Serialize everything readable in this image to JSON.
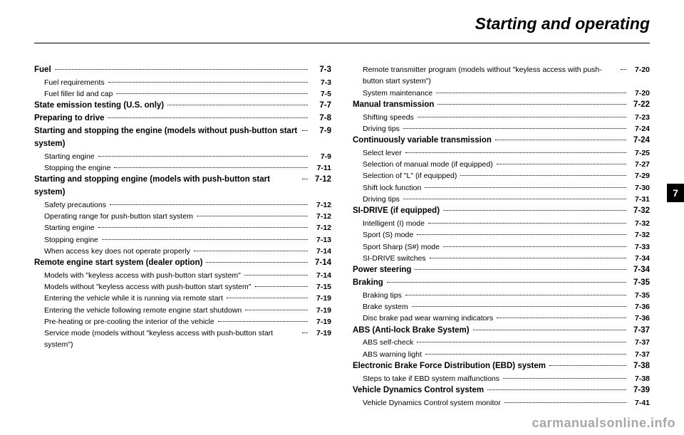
{
  "title": "Starting and operating",
  "section_tab": "7",
  "watermark": "carmanualsonline.info",
  "columns": [
    [
      {
        "lvl": 1,
        "label": "Fuel",
        "page": "7-3"
      },
      {
        "lvl": 2,
        "label": "Fuel requirements",
        "page": "7-3"
      },
      {
        "lvl": 2,
        "label": "Fuel filler lid and cap",
        "page": "7-5"
      },
      {
        "lvl": 1,
        "label": "State emission testing (U.S. only)",
        "page": "7-7"
      },
      {
        "lvl": 1,
        "label": "Preparing to drive",
        "page": "7-8"
      },
      {
        "lvl": 1,
        "label": "Starting and stopping the engine (models without push-button start system)",
        "page": "7-9"
      },
      {
        "lvl": 2,
        "label": "Starting engine",
        "page": "7-9"
      },
      {
        "lvl": 2,
        "label": "Stopping the engine",
        "page": "7-11"
      },
      {
        "lvl": 1,
        "label": "Starting and stopping engine (models with push-button start system)",
        "page": "7-12"
      },
      {
        "lvl": 2,
        "label": "Safety precautions",
        "page": "7-12"
      },
      {
        "lvl": 2,
        "label": "Operating range for push-button start system",
        "page": "7-12"
      },
      {
        "lvl": 2,
        "label": "Starting engine",
        "page": "7-12"
      },
      {
        "lvl": 2,
        "label": "Stopping engine",
        "page": "7-13"
      },
      {
        "lvl": 2,
        "label": "When access key does not operate properly",
        "page": "7-14"
      },
      {
        "lvl": 1,
        "label": "Remote engine start system (dealer option)",
        "page": "7-14"
      },
      {
        "lvl": 2,
        "label": "Models with \"keyless access with push-button start system\"",
        "page": "7-14"
      },
      {
        "lvl": 2,
        "label": "Models without \"keyless access with push-button start system\"",
        "page": "7-15"
      },
      {
        "lvl": 2,
        "label": "Entering the vehicle while it is running via remote start",
        "page": "7-19"
      },
      {
        "lvl": 2,
        "label": "Entering the vehicle following remote engine start shutdown",
        "page": "7-19"
      },
      {
        "lvl": 2,
        "label": "Pre-heating or pre-cooling the interior of the vehicle",
        "page": "7-19"
      },
      {
        "lvl": 2,
        "label": "Service mode (models without \"keyless access with push-button start system\")",
        "page": "7-19"
      }
    ],
    [
      {
        "lvl": 2,
        "label": "Remote transmitter program (models without \"keyless access with push-button start system\")",
        "page": "7-20"
      },
      {
        "lvl": 2,
        "label": "System maintenance",
        "page": "7-20"
      },
      {
        "lvl": 1,
        "label": "Manual transmission",
        "page": "7-22"
      },
      {
        "lvl": 2,
        "label": "Shifting speeds",
        "page": "7-23"
      },
      {
        "lvl": 2,
        "label": "Driving tips",
        "page": "7-24"
      },
      {
        "lvl": 1,
        "label": "Continuously variable transmission",
        "page": "7-24"
      },
      {
        "lvl": 2,
        "label": "Select lever",
        "page": "7-25"
      },
      {
        "lvl": 2,
        "label": "Selection of manual mode (if equipped)",
        "page": "7-27"
      },
      {
        "lvl": 2,
        "label": "Selection of \"L\" (if equipped)",
        "page": "7-29"
      },
      {
        "lvl": 2,
        "label": "Shift lock function",
        "page": "7-30"
      },
      {
        "lvl": 2,
        "label": "Driving tips",
        "page": "7-31"
      },
      {
        "lvl": 1,
        "label": "SI-DRIVE (if equipped)",
        "page": "7-32"
      },
      {
        "lvl": 2,
        "label": "Intelligent (I) mode",
        "page": "7-32"
      },
      {
        "lvl": 2,
        "label": "Sport (S) mode",
        "page": "7-32"
      },
      {
        "lvl": 2,
        "label": "Sport Sharp (S#) mode",
        "page": "7-33"
      },
      {
        "lvl": 2,
        "label": "SI-DRIVE switches",
        "page": "7-34"
      },
      {
        "lvl": 1,
        "label": "Power steering",
        "page": "7-34"
      },
      {
        "lvl": 1,
        "label": "Braking",
        "page": "7-35"
      },
      {
        "lvl": 2,
        "label": "Braking tips",
        "page": "7-35"
      },
      {
        "lvl": 2,
        "label": "Brake system",
        "page": "7-36"
      },
      {
        "lvl": 2,
        "label": "Disc brake pad wear warning indicators",
        "page": "7-36"
      },
      {
        "lvl": 1,
        "label": "ABS (Anti-lock Brake System)",
        "page": "7-37"
      },
      {
        "lvl": 2,
        "label": "ABS self-check",
        "page": "7-37"
      },
      {
        "lvl": 2,
        "label": "ABS warning light",
        "page": "7-37"
      },
      {
        "lvl": 1,
        "label": "Electronic Brake Force Distribution (EBD) system",
        "page": "7-38"
      },
      {
        "lvl": 2,
        "label": "Steps to take if EBD system malfunctions",
        "page": "7-38"
      },
      {
        "lvl": 1,
        "label": "Vehicle Dynamics Control system",
        "page": "7-39"
      },
      {
        "lvl": 2,
        "label": "Vehicle Dynamics Control system monitor",
        "page": "7-41"
      }
    ]
  ]
}
